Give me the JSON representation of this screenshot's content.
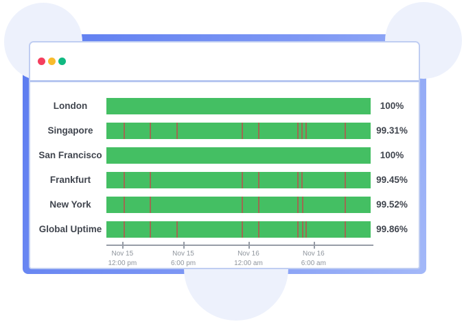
{
  "browser": {
    "traffic_lights": [
      {
        "name": "close",
        "color": "#f43e5e"
      },
      {
        "name": "minimize",
        "color": "#f8bb2c"
      },
      {
        "name": "maximize",
        "color": "#10b981"
      }
    ]
  },
  "chart_data": {
    "type": "bar",
    "orientation": "horizontal",
    "title": "",
    "categories": [
      "London",
      "Singapore",
      "San Francisco",
      "Frankfurt",
      "New York",
      "Global Uptime"
    ],
    "values": [
      100,
      99.31,
      100,
      99.45,
      99.52,
      99.86
    ],
    "value_labels": [
      "100%",
      "99.31%",
      "100%",
      "99.45%",
      "99.52%",
      "99.86%"
    ],
    "bar_lengths_percent": [
      100,
      100,
      100,
      100,
      100,
      100
    ],
    "incident_positions_percent": [
      [],
      [
        6.5,
        16.4,
        26.5,
        51.2,
        57.4,
        72.2,
        73.8,
        75.3,
        90.1
      ],
      [],
      [
        6.5,
        16.4,
        51.2,
        57.4,
        72.2,
        73.8,
        90.1
      ],
      [
        6.5,
        16.4,
        51.2,
        57.4,
        72.2,
        74.0,
        90.1
      ],
      [
        6.5,
        16.4,
        26.5,
        51.2,
        57.4,
        72.2,
        74.0,
        75.3,
        90.1
      ]
    ],
    "x_ticks": [
      {
        "date": "Nov 15",
        "time": "12:00 pm",
        "position_percent": 6.0
      },
      {
        "date": "Nov 15",
        "time": "6:00 pm",
        "position_percent": 28.8
      },
      {
        "date": "Nov 16",
        "time": "12:00 am",
        "position_percent": 53.2
      },
      {
        "date": "Nov 16",
        "time": "6:00 am",
        "position_percent": 77.6
      }
    ],
    "colors": {
      "bar": "#44bf63",
      "incident": "#a8604f"
    },
    "legend": null,
    "grid": false
  }
}
